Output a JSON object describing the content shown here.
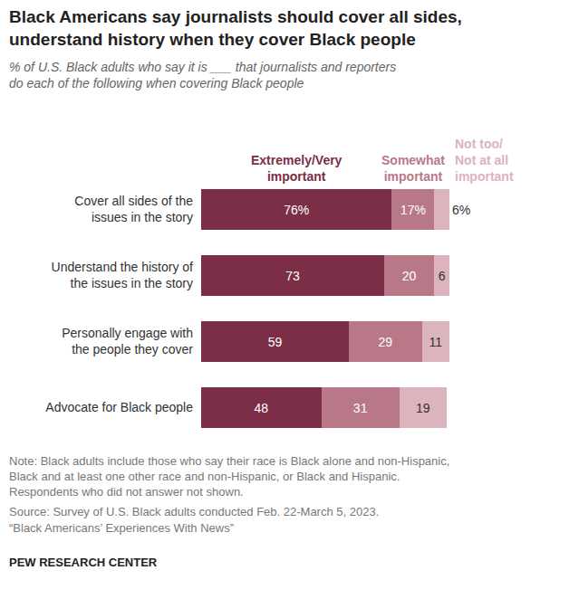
{
  "chart_data": {
    "type": "bar",
    "orientation": "horizontal",
    "stacked": true,
    "data_labels": true,
    "tick_labels": "y",
    "title": "Black Americans say journalists should cover all sides, understand history when they cover Black people",
    "subtitle": "% of U.S. Black adults who say it is ___ that journalists and reporters do each of the following when covering Black people",
    "categories": [
      "Cover all sides of the issues in the story",
      "Understand the history of the issues in the story",
      "Personally engage with the people they cover",
      "Advocate for Black people"
    ],
    "series": [
      {
        "name": "Extremely/Very important",
        "color": "#7b2e46",
        "values": [
          76,
          73,
          59,
          48
        ],
        "value_labels": [
          "76%",
          "73",
          "59",
          "48"
        ]
      },
      {
        "name": "Somewhat important",
        "color": "#b97887",
        "values": [
          17,
          20,
          29,
          31
        ],
        "value_labels": [
          "17%",
          "20",
          "29",
          "31"
        ]
      },
      {
        "name": "Not too/ Not at all important",
        "color": "#dcb4bd",
        "values": [
          6,
          6,
          11,
          19
        ],
        "value_labels": [
          "6%",
          "6",
          "11",
          "19"
        ]
      }
    ],
    "note": "Note: Black adults include those who say their race is Black alone and non-Hispanic, Black and at least one other race and non-Hispanic, or Black and Hispanic. Respondents who did not answer not shown.",
    "source": "Source: Survey of U.S. Black adults conducted Feb. 22-March 5, 2023.",
    "report": "“Black Americans’ Experiences With News”",
    "credit": "PEW RESEARCH CENTER"
  }
}
